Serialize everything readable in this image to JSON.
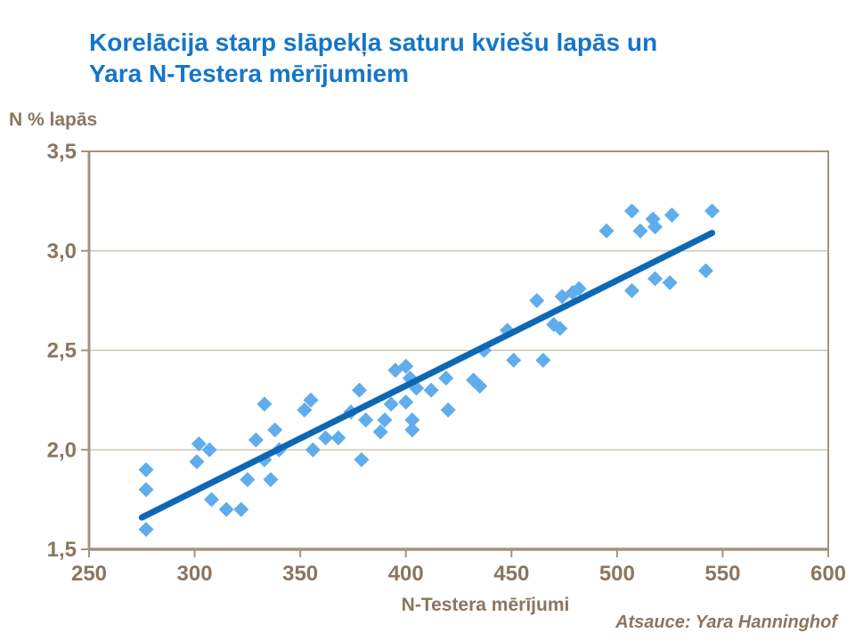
{
  "title": {
    "line1": "Korelācija starp slāpekļa saturu kviešu lapās un",
    "line2": "Yara N-Testera mērījumiem"
  },
  "source_note": "Atsauce: Yara Hanninghof",
  "colors": {
    "title_blue": "#1576c8",
    "axis_text_brown": "#8a7660",
    "axis_line": "#a29382",
    "gridline": "#c9bdaa",
    "marker_blue": "#5fadec",
    "trend_blue": "#0d67b5",
    "background": "#ffffff"
  },
  "chart_data": {
    "type": "scatter",
    "title": "Korelācija starp slāpekļa saturu kviešu lapās un Yara N-Testera mērījumiem",
    "xlabel": "N-Testera mērījumi",
    "ylabel": "N % lapās",
    "xlim": [
      250,
      600
    ],
    "ylim": [
      1.5,
      3.5
    ],
    "x_ticks": [
      250,
      300,
      350,
      400,
      450,
      500,
      550,
      600
    ],
    "x_tick_labels": [
      "250",
      "300",
      "350",
      "400",
      "450",
      "500",
      "550",
      "600"
    ],
    "y_ticks": [
      1.5,
      2.0,
      2.5,
      3.0,
      3.5
    ],
    "y_tick_labels": [
      "1,5",
      "2,0",
      "2,5",
      "3,0",
      "3,5"
    ],
    "grid": "horizontal-only",
    "legend": "none",
    "marker": "diamond",
    "points": [
      [
        277,
        1.9
      ],
      [
        277,
        1.8
      ],
      [
        277,
        1.6
      ],
      [
        302,
        2.03
      ],
      [
        307,
        2.0
      ],
      [
        301,
        1.94
      ],
      [
        308,
        1.75
      ],
      [
        315,
        1.7
      ],
      [
        322,
        1.7
      ],
      [
        325,
        1.85
      ],
      [
        329,
        2.05
      ],
      [
        333,
        2.23
      ],
      [
        333,
        1.95
      ],
      [
        336,
        1.85
      ],
      [
        338,
        2.1
      ],
      [
        340,
        2.0
      ],
      [
        352,
        2.2
      ],
      [
        355,
        2.25
      ],
      [
        356,
        2.0
      ],
      [
        362,
        2.06
      ],
      [
        368,
        2.06
      ],
      [
        374,
        2.19
      ],
      [
        378,
        2.3
      ],
      [
        381,
        2.15
      ],
      [
        379,
        1.95
      ],
      [
        388,
        2.09
      ],
      [
        390,
        2.15
      ],
      [
        393,
        2.23
      ],
      [
        395,
        2.4
      ],
      [
        400,
        2.42
      ],
      [
        400,
        2.24
      ],
      [
        402,
        2.36
      ],
      [
        403,
        2.15
      ],
      [
        403,
        2.1
      ],
      [
        405,
        2.31
      ],
      [
        412,
        2.3
      ],
      [
        419,
        2.36
      ],
      [
        420,
        2.2
      ],
      [
        432,
        2.35
      ],
      [
        435,
        2.32
      ],
      [
        437,
        2.5
      ],
      [
        448,
        2.6
      ],
      [
        451,
        2.45
      ],
      [
        462,
        2.75
      ],
      [
        465,
        2.45
      ],
      [
        470,
        2.63
      ],
      [
        473,
        2.61
      ],
      [
        474,
        2.77
      ],
      [
        479,
        2.79
      ],
      [
        482,
        2.81
      ],
      [
        495,
        3.1
      ],
      [
        507,
        3.2
      ],
      [
        507,
        2.8
      ],
      [
        511,
        3.1
      ],
      [
        517,
        3.16
      ],
      [
        518,
        3.12
      ],
      [
        518,
        2.86
      ],
      [
        525,
        2.84
      ],
      [
        526,
        3.18
      ],
      [
        542,
        2.9
      ],
      [
        545,
        3.2
      ]
    ],
    "trend_line": {
      "x1": 275,
      "y1": 1.66,
      "x2": 545,
      "y2": 3.09
    }
  }
}
